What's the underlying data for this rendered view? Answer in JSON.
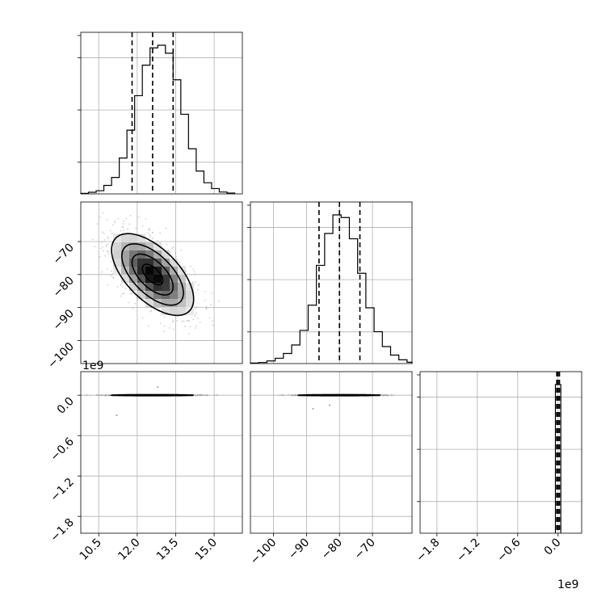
{
  "chart_data": {
    "type": "corner",
    "parameters": [
      {
        "name": "",
        "range": [
          9.8,
          16.1
        ],
        "ticks": [
          10.5,
          12.0,
          13.5,
          15.0
        ],
        "tick_labels": [
          "10.5",
          "12.0",
          "13.5",
          "15.0"
        ],
        "quantiles": [
          11.8,
          12.6,
          13.4
        ],
        "offset_label": ""
      },
      {
        "name": "",
        "range": [
          -107,
          -58
        ],
        "ticks": [
          -100,
          -90,
          -80,
          -70
        ],
        "tick_labels": [
          "−100",
          "−90",
          "−80",
          "−70"
        ],
        "quantiles": [
          -86.2,
          -80.0,
          -73.8
        ],
        "offset_label": ""
      },
      {
        "name": "",
        "range": [
          -2.05,
          0.35
        ],
        "ticks": [
          -1.8,
          -1.2,
          -0.6,
          0.0
        ],
        "tick_labels": [
          "−1.8",
          "−1.2",
          "−0.6",
          "0.0"
        ],
        "quantiles": [
          -0.02,
          0.0,
          0.02
        ],
        "offset_label": "1e9"
      }
    ],
    "histograms": [
      {
        "parameter": 0,
        "bin_edges": [
          9.8,
          10.1,
          10.4,
          10.7,
          11.0,
          11.3,
          11.6,
          11.9,
          12.2,
          12.5,
          12.8,
          13.1,
          13.4,
          13.7,
          14.0,
          14.3,
          14.6,
          14.9,
          15.2,
          15.5,
          15.8
        ],
        "counts": [
          2,
          6,
          12,
          32,
          62,
          135,
          240,
          370,
          485,
          550,
          560,
          530,
          430,
          300,
          170,
          86,
          42,
          20,
          7,
          3
        ]
      },
      {
        "parameter": 1,
        "bin_edges": [
          -107,
          -104.5,
          -102,
          -99.5,
          -97,
          -94.5,
          -92,
          -89.5,
          -87,
          -84.5,
          -82,
          -79.5,
          -77,
          -74.5,
          -72,
          -69.5,
          -67,
          -64.5,
          -62,
          -59.5,
          -57
        ],
        "counts": [
          2,
          4,
          10,
          20,
          38,
          70,
          125,
          220,
          370,
          490,
          560,
          550,
          470,
          340,
          210,
          120,
          64,
          32,
          14,
          5
        ]
      },
      {
        "parameter": 2,
        "bin_edges": [
          -0.04,
          0.0,
          0.04
        ],
        "counts": [
          5000,
          5000
        ]
      }
    ],
    "joint": [
      {
        "x": 0,
        "y": 1,
        "center": [
          12.6,
          -80.0
        ],
        "sd": [
          0.8,
          6.2
        ],
        "correlation": -0.6,
        "contour_levels": [
          0.5,
          1.0,
          1.5,
          2.0
        ]
      },
      {
        "x": 0,
        "y": 2,
        "center": [
          12.6,
          0.0
        ],
        "sd": [
          0.8,
          0.004
        ],
        "correlation": 0.0,
        "contour_levels": [
          0.5,
          1.0,
          1.5,
          2.0
        ]
      },
      {
        "x": 1,
        "y": 2,
        "center": [
          -80.0,
          0.0
        ],
        "sd": [
          6.2,
          0.004
        ],
        "correlation": 0.0,
        "contour_levels": [
          0.5,
          1.0,
          1.5,
          2.0
        ]
      }
    ],
    "grid": true,
    "quantile_lines": "dashed",
    "outliers": [
      [
        11.2,
        -0.3
      ],
      [
        -88,
        -0.2
      ],
      [
        12.8,
        0.12
      ],
      [
        -83,
        -0.15
      ]
    ]
  }
}
